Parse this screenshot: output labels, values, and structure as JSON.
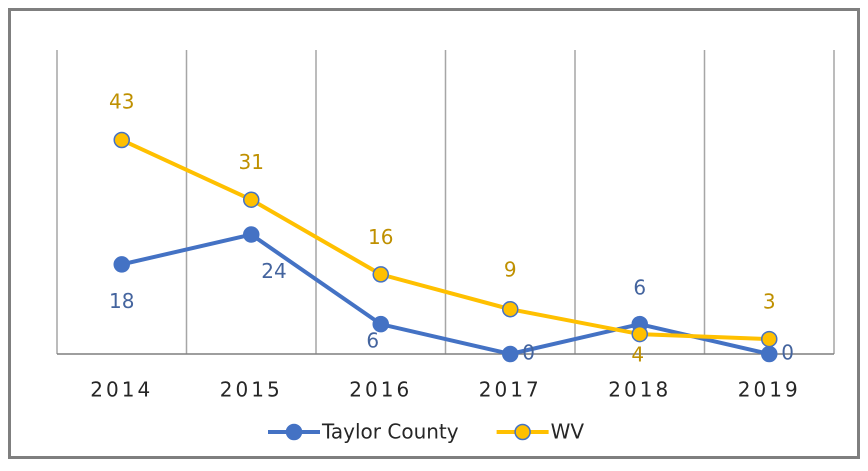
{
  "chart_data": {
    "type": "line",
    "categories": [
      "2014",
      "2015",
      "2016",
      "2017",
      "2018",
      "2019"
    ],
    "series": [
      {
        "name": "Taylor County",
        "color": "#4472c4",
        "label_color": "#44649e",
        "values": [
          18,
          24,
          6,
          0,
          6,
          0
        ]
      },
      {
        "name": "WV",
        "color": "#ffc000",
        "label_color": "#bf9000",
        "values": [
          43,
          31,
          16,
          9,
          4,
          3
        ]
      }
    ],
    "ylim": [
      0,
      60
    ],
    "grid": "vertical",
    "legend": "bottom"
  }
}
